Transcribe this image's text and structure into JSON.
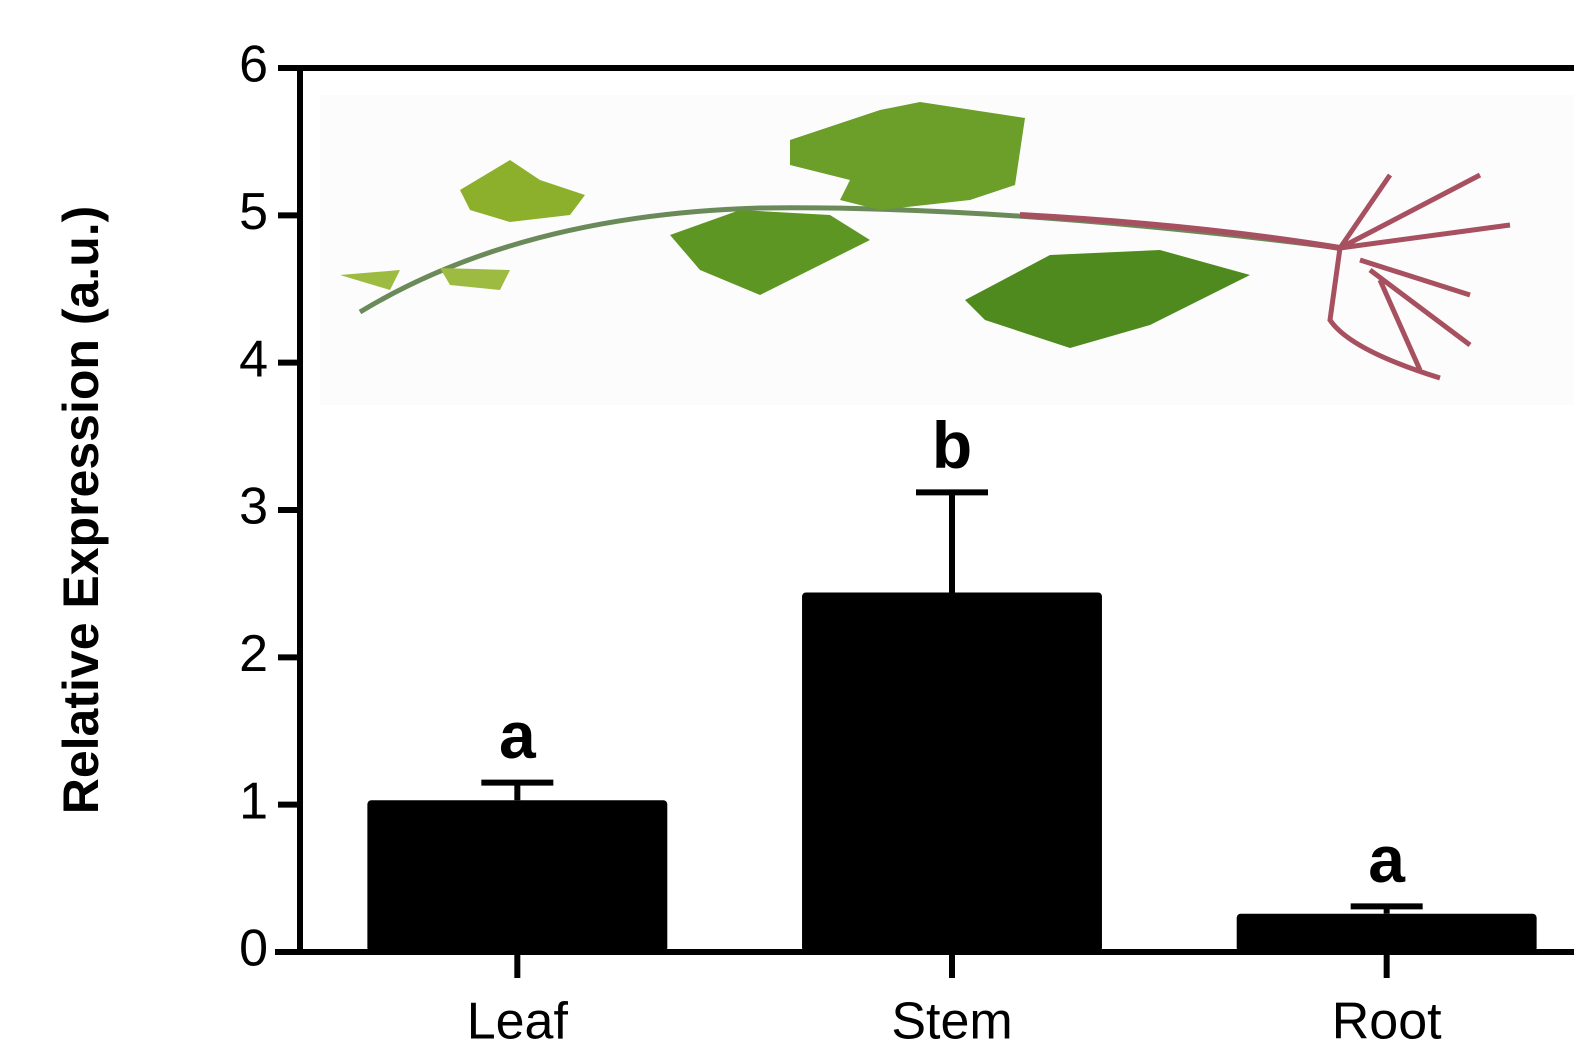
{
  "chart_data": {
    "type": "bar",
    "y_label": "Relative Expression (a.u.)",
    "categories": [
      "Leaf",
      "Stem",
      "Root"
    ],
    "values": [
      1.03,
      2.44,
      0.26
    ],
    "errors": [
      0.12,
      0.68,
      0.05
    ],
    "significance": [
      "a",
      "b",
      "a"
    ],
    "color": "#000000",
    "ylim": [
      0,
      6
    ],
    "yticks": [
      0,
      1,
      2,
      3,
      4,
      5,
      6
    ]
  }
}
